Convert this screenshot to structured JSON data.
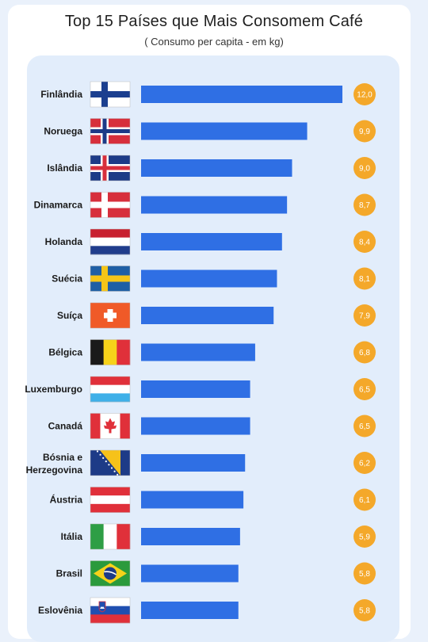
{
  "title": "Top 15 Países que Mais Consomem Café",
  "subtitle": "( Consumo per capita - em kg)",
  "colors": {
    "bar": "#2f6fe4",
    "badge": "#f4a82a",
    "panel": "#e2edfb"
  },
  "chart_data": {
    "type": "bar",
    "orientation": "horizontal",
    "title": "Top 15 Países que Mais Consomem Café",
    "subtitle": "( Consumo per capita - em kg)",
    "categories": [
      "Finlândia",
      "Noruega",
      "Islândia",
      "Dinamarca",
      "Holanda",
      "Suécia",
      "Suíça",
      "Bélgica",
      "Luxemburgo",
      "Canadá",
      "Bósnia e Herzegovina",
      "Áustria",
      "Itália",
      "Brasil",
      "Eslovênia"
    ],
    "values": [
      12.0,
      9.9,
      9.0,
      8.7,
      8.4,
      8.1,
      7.9,
      6.8,
      6.5,
      6.5,
      6.2,
      6.1,
      5.9,
      5.8,
      5.8
    ],
    "value_labels": [
      "12,0",
      "9,9",
      "9,0",
      "8,7",
      "8,4",
      "8,1",
      "7,9",
      "6,8",
      "6,5",
      "6,5",
      "6,2",
      "6,1",
      "5,9",
      "5,8",
      "5,8"
    ],
    "flag_icons": [
      "finland-flag-icon",
      "norway-flag-icon",
      "iceland-flag-icon",
      "denmark-flag-icon",
      "netherlands-flag-icon",
      "sweden-flag-icon",
      "switzerland-flag-icon",
      "belgium-flag-icon",
      "luxembourg-flag-icon",
      "canada-flag-icon",
      "bosnia-flag-icon",
      "austria-flag-icon",
      "italy-flag-icon",
      "brazil-flag-icon",
      "slovenia-flag-icon"
    ],
    "xlim": [
      0,
      12.0
    ],
    "grid": false,
    "legend": "none"
  }
}
